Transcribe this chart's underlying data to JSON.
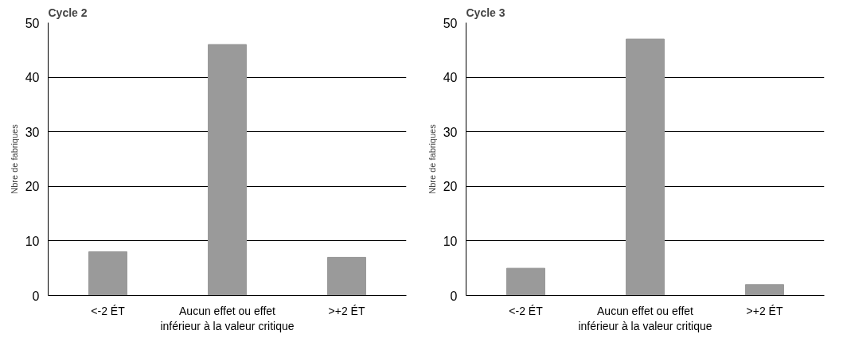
{
  "chart_data": [
    {
      "type": "bar",
      "title": "Cycle 2",
      "ylabel": "Nbre de fabriques",
      "categories": [
        "<-2 ÉT",
        "Aucun effet ou effet\ninférieur à la valeur critique",
        ">+2 ÉT"
      ],
      "values": [
        8,
        46,
        7
      ],
      "color": "#9a9a9a",
      "ylim": [
        0,
        50
      ],
      "yticks": [
        0,
        10,
        20,
        30,
        40,
        50
      ],
      "grid": "y"
    },
    {
      "type": "bar",
      "title": "Cycle 3",
      "ylabel": "Nbre de fabriques",
      "categories": [
        "<-2 ÉT",
        "Aucun effet ou effet\ninférieur à la valeur critique",
        ">+2 ÉT"
      ],
      "values": [
        5,
        47,
        2
      ],
      "color": "#9a9a9a",
      "ylim": [
        0,
        50
      ],
      "yticks": [
        0,
        10,
        20,
        30,
        40,
        50
      ],
      "grid": "y"
    }
  ]
}
